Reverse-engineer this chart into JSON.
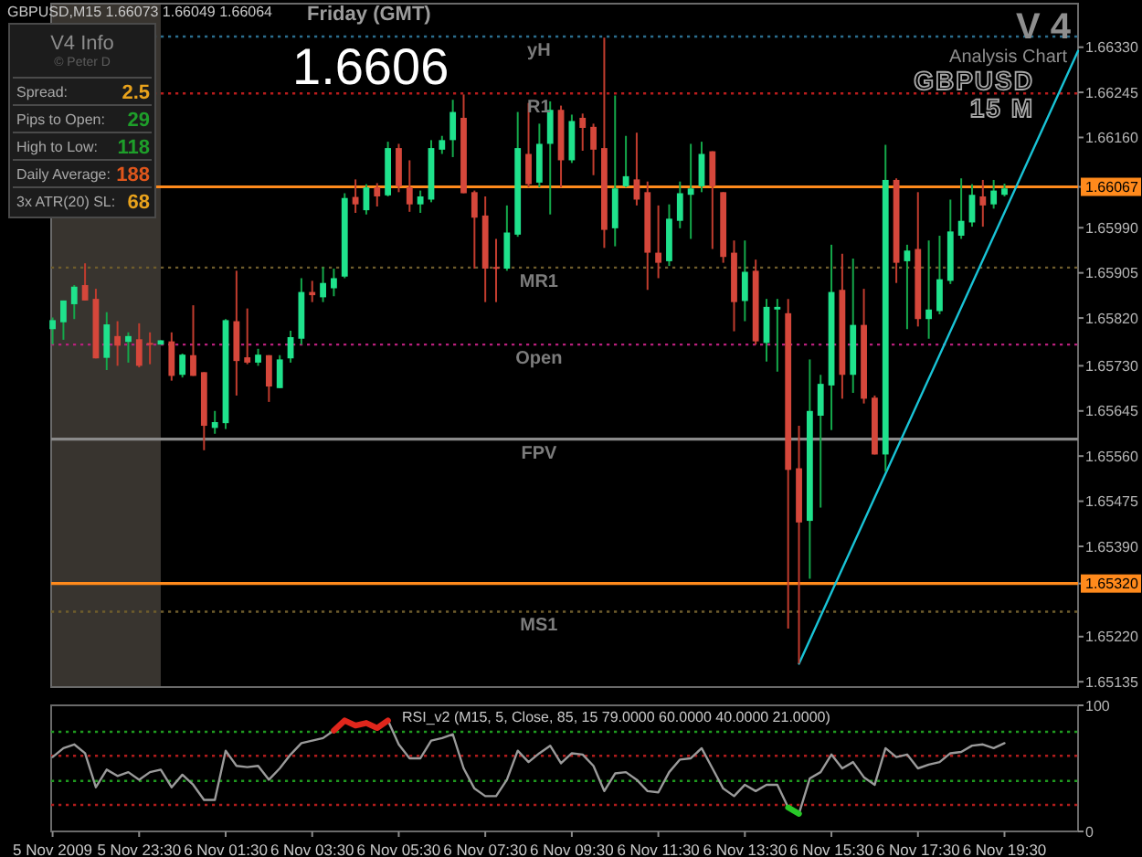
{
  "chart_data": [
    {
      "type": "candlestick",
      "x": [
        "2009-11-05T21:30",
        "2009-11-05T21:45",
        "2009-11-05T22:00",
        "2009-11-05T22:15",
        "2009-11-05T22:30",
        "2009-11-05T22:45",
        "2009-11-05T23:00",
        "2009-11-05T23:15",
        "2009-11-05T23:30",
        "2009-11-05T23:45",
        "2009-11-06T00:00",
        "2009-11-06T00:15",
        "2009-11-06T00:30",
        "2009-11-06T00:45",
        "2009-11-06T01:00",
        "2009-11-06T01:15",
        "2009-11-06T01:30",
        "2009-11-06T01:45",
        "2009-11-06T02:00",
        "2009-11-06T02:15",
        "2009-11-06T02:30",
        "2009-11-06T02:45",
        "2009-11-06T03:00",
        "2009-11-06T03:15",
        "2009-11-06T03:30",
        "2009-11-06T03:45",
        "2009-11-06T04:00",
        "2009-11-06T04:15",
        "2009-11-06T04:30",
        "2009-11-06T04:45",
        "2009-11-06T05:00",
        "2009-11-06T05:15",
        "2009-11-06T05:30",
        "2009-11-06T05:45",
        "2009-11-06T06:00",
        "2009-11-06T06:15",
        "2009-11-06T06:30",
        "2009-11-06T06:45",
        "2009-11-06T07:00",
        "2009-11-06T07:15",
        "2009-11-06T07:30",
        "2009-11-06T07:45",
        "2009-11-06T08:00",
        "2009-11-06T08:15",
        "2009-11-06T08:30",
        "2009-11-06T08:45",
        "2009-11-06T09:00",
        "2009-11-06T09:15",
        "2009-11-06T09:30",
        "2009-11-06T09:45",
        "2009-11-06T10:00",
        "2009-11-06T10:15",
        "2009-11-06T10:30",
        "2009-11-06T10:45",
        "2009-11-06T11:00",
        "2009-11-06T11:15",
        "2009-11-06T11:30",
        "2009-11-06T11:45",
        "2009-11-06T12:00",
        "2009-11-06T12:15",
        "2009-11-06T12:30",
        "2009-11-06T12:45",
        "2009-11-06T13:00",
        "2009-11-06T13:15",
        "2009-11-06T13:30",
        "2009-11-06T13:45",
        "2009-11-06T14:00",
        "2009-11-06T14:15",
        "2009-11-06T14:30",
        "2009-11-06T14:45",
        "2009-11-06T15:00",
        "2009-11-06T15:15",
        "2009-11-06T15:30",
        "2009-11-06T15:45",
        "2009-11-06T16:00",
        "2009-11-06T16:15",
        "2009-11-06T16:30",
        "2009-11-06T16:45",
        "2009-11-06T17:00",
        "2009-11-06T17:15",
        "2009-11-06T17:30",
        "2009-11-06T17:45",
        "2009-11-06T18:00",
        "2009-11-06T18:15",
        "2009-11-06T18:30",
        "2009-11-06T18:45",
        "2009-11-06T19:00",
        "2009-11-06T19:15",
        "2009-11-06T19:30"
      ],
      "ohlc": [
        [
          1.65799,
          1.65821,
          1.6577,
          1.65816
        ],
        [
          1.65812,
          1.65853,
          1.65779,
          1.65853
        ],
        [
          1.65846,
          1.65882,
          1.65818,
          1.65879
        ],
        [
          1.65882,
          1.65923,
          1.65853,
          1.65853
        ],
        [
          1.65856,
          1.65875,
          1.65744,
          1.65744
        ],
        [
          1.65745,
          1.65831,
          1.65722,
          1.65808
        ],
        [
          1.65786,
          1.65814,
          1.6573,
          1.65768
        ],
        [
          1.65775,
          1.65793,
          1.65736,
          1.65786
        ],
        [
          1.6578,
          1.6581,
          1.65727,
          1.6573
        ],
        [
          1.65773,
          1.65793,
          1.65733,
          1.6577
        ],
        [
          1.6577,
          1.65778,
          1.6577,
          1.65778
        ],
        [
          1.65776,
          1.65793,
          1.65702,
          1.65711
        ],
        [
          1.65713,
          1.65753,
          1.65708,
          1.65751
        ],
        [
          1.6575,
          1.65844,
          1.65711,
          1.65711
        ],
        [
          1.65718,
          1.65718,
          1.65571,
          1.65617
        ],
        [
          1.65613,
          1.65645,
          1.65602,
          1.65624
        ],
        [
          1.65622,
          1.65818,
          1.65611,
          1.65816
        ],
        [
          1.65814,
          1.65909,
          1.65674,
          1.65739
        ],
        [
          1.65746,
          1.65838,
          1.65733,
          1.65736
        ],
        [
          1.65736,
          1.65762,
          1.6573,
          1.65751
        ],
        [
          1.6575,
          1.6575,
          1.65662,
          1.65691
        ],
        [
          1.65688,
          1.6575,
          1.65688,
          1.65742
        ],
        [
          1.65744,
          1.65796,
          1.65736,
          1.65784
        ],
        [
          1.65781,
          1.65895,
          1.6577,
          1.65869
        ],
        [
          1.65869,
          1.6589,
          1.6585,
          1.65863
        ],
        [
          1.65859,
          1.65916,
          1.6585,
          1.65886
        ],
        [
          1.65876,
          1.65913,
          1.65861,
          1.65895
        ],
        [
          1.65898,
          1.66055,
          1.65895,
          1.66046
        ],
        [
          1.66048,
          1.66081,
          1.66018,
          1.66034
        ],
        [
          1.66023,
          1.66072,
          1.66015,
          1.66066
        ],
        [
          1.66066,
          1.66074,
          1.6603,
          1.66049
        ],
        [
          1.66051,
          1.66152,
          1.66049,
          1.6614
        ],
        [
          1.6614,
          1.66148,
          1.66057,
          1.66068
        ],
        [
          1.66066,
          1.66117,
          1.6602,
          1.66034
        ],
        [
          1.66034,
          1.6606,
          1.66018,
          1.66049
        ],
        [
          1.66043,
          1.66155,
          1.66038,
          1.6614
        ],
        [
          1.66137,
          1.66163,
          1.66129,
          1.66155
        ],
        [
          1.66155,
          1.66231,
          1.66123,
          1.66208
        ],
        [
          1.66197,
          1.66241,
          1.66055,
          1.66055
        ],
        [
          1.66057,
          1.6606,
          1.65913,
          1.66009
        ],
        [
          1.66013,
          1.66049,
          1.6585,
          1.65913
        ],
        [
          1.65916,
          1.65969,
          1.6585,
          1.65913
        ],
        [
          1.65913,
          1.66032,
          1.65909,
          1.65981
        ],
        [
          1.65977,
          1.66208,
          1.65973,
          1.6614
        ],
        [
          1.66129,
          1.66225,
          1.66066,
          1.66072
        ],
        [
          1.66075,
          1.66186,
          1.66066,
          1.66148
        ],
        [
          1.66148,
          1.66228,
          1.66015,
          1.66212
        ],
        [
          1.66212,
          1.6622,
          1.66066,
          1.66117
        ],
        [
          1.66117,
          1.66203,
          1.66112,
          1.66191
        ],
        [
          1.66197,
          1.66205,
          1.66135,
          1.66178
        ],
        [
          1.6618,
          1.66186,
          1.66089,
          1.66137
        ],
        [
          1.6614,
          1.66348,
          1.65952,
          1.65986
        ],
        [
          1.65989,
          1.66239,
          1.65955,
          1.66064
        ],
        [
          1.66068,
          1.66163,
          1.66066,
          1.66087
        ],
        [
          1.66081,
          1.66169,
          1.66032,
          1.66043
        ],
        [
          1.66057,
          1.66077,
          1.65873,
          1.65943
        ],
        [
          1.65943,
          1.66032,
          1.65895,
          1.65924
        ],
        [
          1.65927,
          1.66034,
          1.65918,
          1.66007
        ],
        [
          1.66003,
          1.66077,
          1.65989,
          1.66055
        ],
        [
          1.66052,
          1.66148,
          1.65969,
          1.66064
        ],
        [
          1.66068,
          1.66152,
          1.66057,
          1.66129
        ],
        [
          1.66134,
          1.66134,
          1.6595,
          1.66068
        ],
        [
          1.66057,
          1.66057,
          1.65924,
          1.65935
        ],
        [
          1.65943,
          1.65966,
          1.65795,
          1.6585
        ],
        [
          1.65852,
          1.65966,
          1.65814,
          1.65907
        ],
        [
          1.65909,
          1.6593,
          1.6577,
          1.65776
        ],
        [
          1.65773,
          1.65856,
          1.65738,
          1.65841
        ],
        [
          1.65836,
          1.65856,
          1.65719,
          1.65841
        ],
        [
          1.65829,
          1.65856,
          1.65235,
          1.65534
        ],
        [
          1.65537,
          1.65617,
          1.65169,
          1.65435
        ],
        [
          1.65438,
          1.65742,
          1.65329,
          1.65645
        ],
        [
          1.65636,
          1.65713,
          1.65463,
          1.65696
        ],
        [
          1.65693,
          1.65958,
          1.65609,
          1.65869
        ],
        [
          1.65873,
          1.65941,
          1.65668,
          1.65713
        ],
        [
          1.65713,
          1.65932,
          1.65679,
          1.65807
        ],
        [
          1.65807,
          1.65875,
          1.65659,
          1.65668
        ],
        [
          1.6567,
          1.65674,
          1.65563,
          1.65563
        ],
        [
          1.65563,
          1.66146,
          1.65531,
          1.6608
        ],
        [
          1.6608,
          1.66083,
          1.65886,
          1.65924
        ],
        [
          1.65927,
          1.65958,
          1.65799,
          1.65947
        ],
        [
          1.6595,
          1.66057,
          1.65804,
          1.65818
        ],
        [
          1.65818,
          1.65966,
          1.65781,
          1.65836
        ],
        [
          1.65833,
          1.65975,
          1.65827,
          1.65893
        ],
        [
          1.6589,
          1.66043,
          1.65884,
          1.65983
        ],
        [
          1.65975,
          1.66083,
          1.65969,
          1.66003
        ],
        [
          1.66,
          1.66072,
          1.65992,
          1.66052
        ],
        [
          1.66049,
          1.6608,
          1.65992,
          1.66032
        ],
        [
          1.66034,
          1.6608,
          1.66026,
          1.6606
        ],
        [
          1.66052,
          1.66073,
          1.66049,
          1.66064
        ]
      ],
      "xlim": [
        "2009-11-05T21:28",
        "2009-11-06T21:12"
      ],
      "ylim": [
        1.65125,
        1.66412
      ],
      "yticks": [
        {
          "value": 1.6633,
          "label": "1.66330"
        },
        {
          "value": 1.66245,
          "label": "1.66245"
        },
        {
          "value": 1.6616,
          "label": "1.66160"
        },
        {
          "value": 1.66067,
          "label": "1.66067"
        },
        {
          "value": 1.6599,
          "label": "1.65990"
        },
        {
          "value": 1.65905,
          "label": "1.65905"
        },
        {
          "value": 1.6582,
          "label": "1.65820"
        },
        {
          "value": 1.6573,
          "label": "1.65730"
        },
        {
          "value": 1.65645,
          "label": "1.65645"
        },
        {
          "value": 1.6556,
          "label": "1.65560"
        },
        {
          "value": 1.65475,
          "label": "1.65475"
        },
        {
          "value": 1.6539,
          "label": "1.65390"
        },
        {
          "value": 1.6532,
          "label": "1.65320"
        },
        {
          "value": 1.6522,
          "label": "1.65220"
        },
        {
          "value": 1.65135,
          "label": "1.65135"
        }
      ],
      "tick_labels": "y",
      "ref_lines": [
        {
          "axis": "y",
          "value": 1.6635,
          "label": "yH",
          "color": "#2b6e8e",
          "line_style": "dotted"
        },
        {
          "axis": "y",
          "value": 1.66243,
          "label": "R1",
          "color": "#b81c1c",
          "line_style": "dotted"
        },
        {
          "axis": "y",
          "value": 1.66067,
          "color": "#ff8a1c",
          "line_style": "solid"
        },
        {
          "axis": "y",
          "value": 1.65915,
          "label": "MR1",
          "color": "#6e5c2c",
          "line_style": "dotted"
        },
        {
          "axis": "y",
          "value": 1.6577,
          "label": "Open",
          "color": "#b8207c",
          "line_style": "dotted"
        },
        {
          "axis": "y",
          "value": 1.65592,
          "label": "FPV",
          "color": "#8a8a8a",
          "line_style": "solid"
        },
        {
          "axis": "y",
          "value": 1.6532,
          "color": "#ff8a1c",
          "line_style": "solid"
        },
        {
          "axis": "y",
          "value": 1.65267,
          "label": "MS1",
          "color": "#6e5c2c",
          "line_style": "dotted"
        }
      ],
      "bands": [
        {
          "axis": "x",
          "from": "2009-11-05T21:28",
          "to": "2009-11-06T00:00",
          "color": "#38342f"
        }
      ],
      "series": [
        {
          "type": "line",
          "color": "#19c3d6",
          "x": [
            "2009-11-06T14:45",
            "2009-11-06T21:12"
          ],
          "values": [
            1.65169,
            1.66323
          ]
        }
      ],
      "annotations": [
        "GBPUSD,M15 1.66073 1.66049 1.66064",
        "Friday (GMT)",
        "1.6606",
        "V 4",
        "Analysis Chart",
        "GBPUSD",
        "15 M"
      ]
    },
    {
      "type": "line",
      "title": "RSI_v2 (M15, 5, Close, 85, 15 79.0000 60.0000 40.0000 21.0000)",
      "x": [
        "2009-11-05T21:30",
        "2009-11-05T21:45",
        "2009-11-05T22:00",
        "2009-11-05T22:15",
        "2009-11-05T22:30",
        "2009-11-05T22:45",
        "2009-11-05T23:00",
        "2009-11-05T23:15",
        "2009-11-05T23:30",
        "2009-11-05T23:45",
        "2009-11-06T00:00",
        "2009-11-06T00:15",
        "2009-11-06T00:30",
        "2009-11-06T00:45",
        "2009-11-06T01:00",
        "2009-11-06T01:15",
        "2009-11-06T01:30",
        "2009-11-06T01:45",
        "2009-11-06T02:00",
        "2009-11-06T02:15",
        "2009-11-06T02:30",
        "2009-11-06T02:45",
        "2009-11-06T03:00",
        "2009-11-06T03:15",
        "2009-11-06T03:30",
        "2009-11-06T03:45",
        "2009-11-06T04:00",
        "2009-11-06T04:15",
        "2009-11-06T04:30",
        "2009-11-06T04:45",
        "2009-11-06T05:00",
        "2009-11-06T05:15",
        "2009-11-06T05:30",
        "2009-11-06T05:45",
        "2009-11-06T06:00",
        "2009-11-06T06:15",
        "2009-11-06T06:30",
        "2009-11-06T06:45",
        "2009-11-06T07:00",
        "2009-11-06T07:15",
        "2009-11-06T07:30",
        "2009-11-06T07:45",
        "2009-11-06T08:00",
        "2009-11-06T08:15",
        "2009-11-06T08:30",
        "2009-11-06T08:45",
        "2009-11-06T09:00",
        "2009-11-06T09:15",
        "2009-11-06T09:30",
        "2009-11-06T09:45",
        "2009-11-06T10:00",
        "2009-11-06T10:15",
        "2009-11-06T10:30",
        "2009-11-06T10:45",
        "2009-11-06T11:00",
        "2009-11-06T11:15",
        "2009-11-06T11:30",
        "2009-11-06T11:45",
        "2009-11-06T12:00",
        "2009-11-06T12:15",
        "2009-11-06T12:30",
        "2009-11-06T12:45",
        "2009-11-06T13:00",
        "2009-11-06T13:15",
        "2009-11-06T13:30",
        "2009-11-06T13:45",
        "2009-11-06T14:00",
        "2009-11-06T14:15",
        "2009-11-06T14:30",
        "2009-11-06T14:45",
        "2009-11-06T15:00",
        "2009-11-06T15:15",
        "2009-11-06T15:30",
        "2009-11-06T15:45",
        "2009-11-06T16:00",
        "2009-11-06T16:15",
        "2009-11-06T16:30",
        "2009-11-06T16:45",
        "2009-11-06T17:00",
        "2009-11-06T17:15",
        "2009-11-06T17:30",
        "2009-11-06T17:45",
        "2009-11-06T18:00",
        "2009-11-06T18:15",
        "2009-11-06T18:30",
        "2009-11-06T18:45",
        "2009-11-06T19:00",
        "2009-11-06T19:15",
        "2009-11-06T19:30"
      ],
      "series": [
        {
          "color": "#9a9a9a",
          "values": [
            59,
            66,
            69,
            62,
            35,
            49,
            44,
            47,
            41,
            47,
            49,
            35,
            45,
            37,
            25,
            25,
            64,
            52,
            51,
            52,
            41,
            50,
            61,
            70,
            72,
            74,
            80,
            null,
            null,
            null,
            null,
            88,
            69,
            58,
            58,
            72,
            74,
            77,
            50,
            34,
            28,
            28,
            41,
            64,
            55,
            62,
            68,
            54,
            62,
            61,
            52,
            32,
            46,
            47,
            41,
            32,
            31,
            47,
            57,
            58,
            66,
            50,
            34,
            28,
            37,
            32,
            37,
            37,
            19,
            14,
            42,
            47,
            61,
            50,
            55,
            43,
            37,
            66,
            59,
            61,
            50,
            53,
            55,
            62,
            63,
            68,
            69,
            66,
            70
          ]
        },
        {
          "color": "#e0261c",
          "values": [
            null,
            null,
            null,
            null,
            null,
            null,
            null,
            null,
            null,
            null,
            null,
            null,
            null,
            null,
            null,
            null,
            null,
            null,
            null,
            null,
            null,
            null,
            null,
            null,
            null,
            null,
            80,
            88,
            84,
            86,
            82,
            88,
            null,
            null,
            null,
            null,
            null,
            null,
            null,
            null,
            null,
            null,
            null,
            null,
            null,
            null,
            null,
            null,
            null,
            null,
            null,
            null,
            null,
            null,
            null,
            null,
            null,
            null,
            null,
            null,
            null,
            null,
            null,
            null,
            null,
            null,
            null,
            null,
            null,
            null,
            null,
            null,
            null,
            null,
            null,
            null,
            null,
            null,
            null,
            null,
            null,
            null,
            null,
            null,
            null,
            null,
            null,
            null,
            null
          ]
        },
        {
          "color": "#28c828",
          "values": [
            null,
            null,
            null,
            null,
            null,
            null,
            null,
            null,
            null,
            null,
            null,
            null,
            null,
            null,
            null,
            null,
            null,
            null,
            null,
            null,
            null,
            null,
            null,
            null,
            null,
            null,
            null,
            null,
            null,
            null,
            null,
            null,
            null,
            null,
            null,
            null,
            null,
            null,
            null,
            null,
            null,
            null,
            null,
            null,
            null,
            null,
            null,
            null,
            null,
            null,
            null,
            null,
            null,
            null,
            null,
            null,
            null,
            null,
            null,
            null,
            null,
            null,
            null,
            null,
            null,
            null,
            null,
            null,
            19,
            14,
            null,
            null,
            null,
            null,
            null,
            null,
            null,
            null,
            null,
            null,
            null,
            null,
            null,
            null,
            null,
            null,
            null,
            null,
            null
          ]
        }
      ],
      "xlim": [
        "2009-11-05T21:28",
        "2009-11-06T21:12"
      ],
      "xticks": [
        {
          "value": "2009-11-05T21:30",
          "label": "5 Nov 2009"
        },
        {
          "value": "2009-11-05T23:30",
          "label": "5 Nov 23:30"
        },
        {
          "value": "2009-11-06T01:30",
          "label": "6 Nov 01:30"
        },
        {
          "value": "2009-11-06T03:30",
          "label": "6 Nov 03:30"
        },
        {
          "value": "2009-11-06T05:30",
          "label": "6 Nov 05:30"
        },
        {
          "value": "2009-11-06T07:30",
          "label": "6 Nov 07:30"
        },
        {
          "value": "2009-11-06T09:30",
          "label": "6 Nov 09:30"
        },
        {
          "value": "2009-11-06T11:30",
          "label": "6 Nov 11:30"
        },
        {
          "value": "2009-11-06T13:30",
          "label": "6 Nov 13:30"
        },
        {
          "value": "2009-11-06T15:30",
          "label": "6 Nov 15:30"
        },
        {
          "value": "2009-11-06T17:30",
          "label": "6 Nov 17:30"
        },
        {
          "value": "2009-11-06T19:30",
          "label": "6 Nov 19:30"
        }
      ],
      "ylim": [
        0,
        100
      ],
      "yticks": [
        0,
        100
      ],
      "ref_lines": [
        {
          "axis": "y",
          "value": 79,
          "color": "#1f9a1f",
          "line_style": "dotted"
        },
        {
          "axis": "y",
          "value": 60,
          "color": "#b01c1c",
          "line_style": "dotted"
        },
        {
          "axis": "y",
          "value": 40,
          "color": "#1f9a1f",
          "line_style": "dotted"
        },
        {
          "axis": "y",
          "value": 21,
          "color": "#b01c1c",
          "line_style": "dotted"
        }
      ]
    },
    {
      "type": "other",
      "title": "V4 Info",
      "subtitle": "© Peter D",
      "annotations": [
        "Spread:",
        "2.5",
        "Pips to Open:",
        "29",
        "High to Low:",
        "118",
        "Daily Average:",
        "188",
        "3x ATR(20) SL:",
        "68"
      ],
      "colors": [
        "#e8a21c",
        "#1e9e2a",
        "#1e9e2a",
        "#e0561c",
        "#e8a21c"
      ]
    }
  ]
}
